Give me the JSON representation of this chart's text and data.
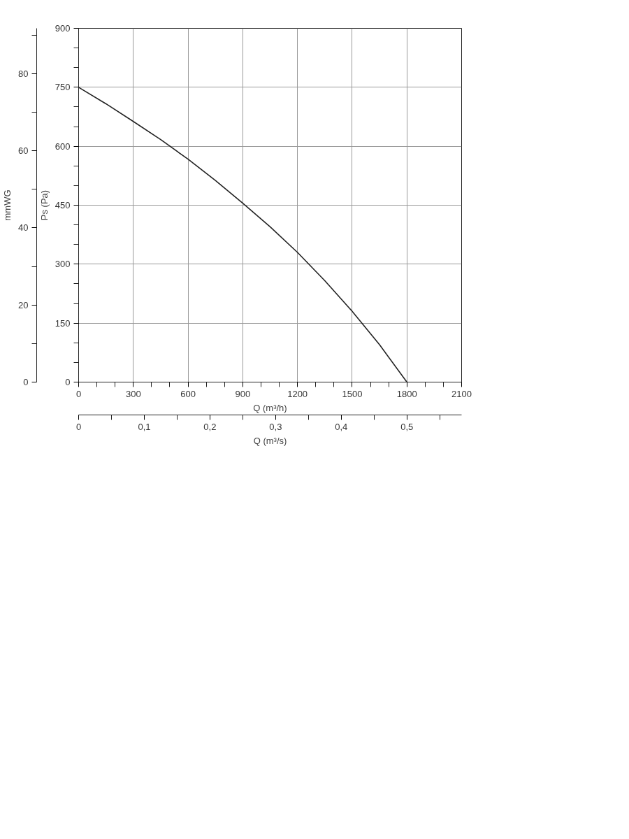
{
  "chart_data": {
    "type": "line",
    "xlabel": "Q (m³/h)",
    "ylabel": "Ps (Pa)",
    "y2label": "mmWG",
    "x2label": "Q (m³/s)",
    "x": [
      0,
      150,
      300,
      450,
      600,
      750,
      900,
      1050,
      1200,
      1350,
      1500,
      1650,
      1800
    ],
    "series": [
      {
        "color": "#222222",
        "values": [
          750,
          708,
          663,
          617,
          567,
          513,
          455,
          395,
          330,
          258,
          180,
          95,
          0
        ]
      }
    ],
    "xlim": [
      0,
      2100
    ],
    "ylim": [
      0,
      900
    ],
    "y2lim": [
      0,
      91.77
    ],
    "x2lim": [
      0,
      0.5833
    ],
    "xticks": [
      0,
      {
        "value": 100,
        "label": null
      },
      {
        "value": 200,
        "label": null
      },
      300,
      {
        "value": 400,
        "label": null
      },
      {
        "value": 500,
        "label": null
      },
      600,
      {
        "value": 700,
        "label": null
      },
      {
        "value": 800,
        "label": null
      },
      900,
      {
        "value": 1000,
        "label": null
      },
      {
        "value": 1100,
        "label": null
      },
      1200,
      {
        "value": 1300,
        "label": null
      },
      {
        "value": 1400,
        "label": null
      },
      1500,
      {
        "value": 1600,
        "label": null
      },
      {
        "value": 1700,
        "label": null
      },
      1800,
      {
        "value": 1900,
        "label": null
      },
      {
        "value": 2000,
        "label": null
      },
      2100
    ],
    "yticks": [
      0,
      {
        "value": 50,
        "label": null
      },
      {
        "value": 100,
        "label": null
      },
      150,
      {
        "value": 200,
        "label": null
      },
      {
        "value": 250,
        "label": null
      },
      300,
      {
        "value": 350,
        "label": null
      },
      {
        "value": 400,
        "label": null
      },
      450,
      {
        "value": 500,
        "label": null
      },
      {
        "value": 550,
        "label": null
      },
      600,
      {
        "value": 650,
        "label": null
      },
      {
        "value": 700,
        "label": null
      },
      750,
      {
        "value": 800,
        "label": null
      },
      {
        "value": 850,
        "label": null
      },
      900
    ],
    "y2ticks": [
      0,
      20,
      40,
      60,
      80
    ],
    "x2ticks": [
      0,
      {
        "value": 0.1,
        "label": "0,1"
      },
      {
        "value": 0.2,
        "label": "0,2"
      },
      {
        "value": 0.3,
        "label": "0,3"
      },
      {
        "value": 0.4,
        "label": "0,4"
      },
      {
        "value": 0.5,
        "label": "0,5"
      }
    ],
    "grid": true,
    "line_style": "solid",
    "marker": "none"
  }
}
